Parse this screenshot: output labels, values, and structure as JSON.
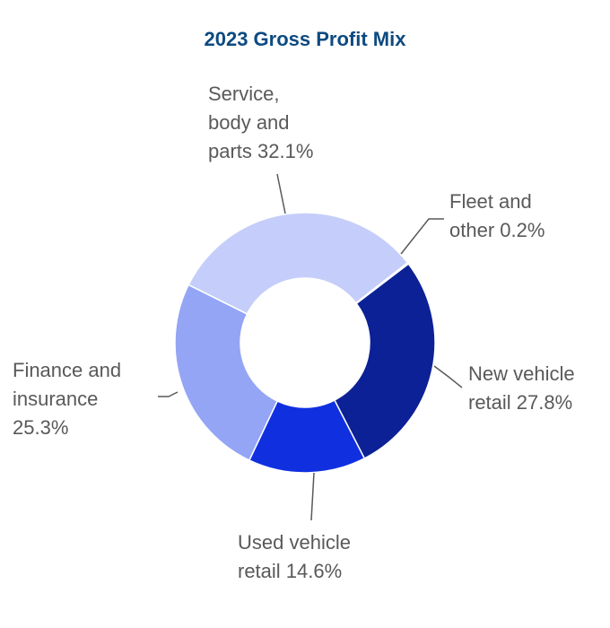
{
  "chart_data": {
    "type": "pie",
    "donut": true,
    "title": "2023 Gross Profit Mix",
    "slices": [
      {
        "name": "Fleet and other",
        "value": 0.2,
        "label_lines": [
          "Fleet and",
          "other 0.2%"
        ],
        "color": "#c5cefa"
      },
      {
        "name": "New vehicle retail",
        "value": 27.8,
        "label_lines": [
          "New vehicle",
          "retail 27.8%"
        ],
        "color": "#0c2195"
      },
      {
        "name": "Used vehicle retail",
        "value": 14.6,
        "label_lines": [
          "Used vehicle",
          "retail 14.6%"
        ],
        "color": "#1030e0"
      },
      {
        "name": "Finance and insurance",
        "value": 25.3,
        "label_lines": [
          "Finance and",
          "insurance",
          "25.3%"
        ],
        "color": "#94a5f6"
      },
      {
        "name": "Service, body and parts",
        "value": 32.1,
        "label_lines": [
          "Service,",
          "body and",
          "parts 32.1%"
        ],
        "color": "#c5cefa"
      }
    ],
    "legend": false
  },
  "colors": {
    "title": "#0d4a80",
    "label_text": "#595959",
    "leader_line": "#595959"
  }
}
